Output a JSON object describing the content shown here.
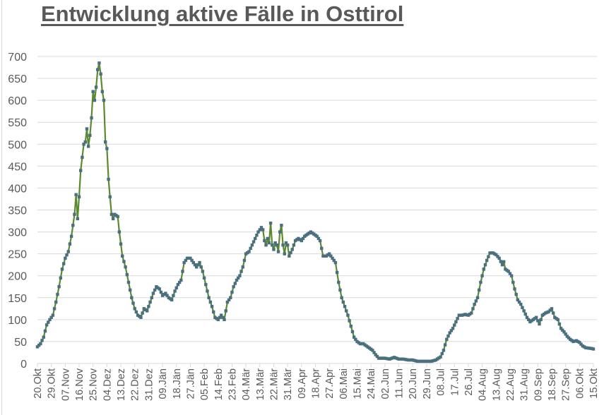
{
  "chart": {
    "title": "Entwicklung aktive Fälle in Osttirol",
    "colors": {
      "line": "#5b8a2e",
      "marker": "#4a6f7e",
      "grid": "#d9d9d9",
      "axis_text": "#595959",
      "title": "#595959"
    }
  },
  "chart_data": {
    "type": "line",
    "title": "Entwicklung aktive Fälle in Osttirol",
    "xlabel": "",
    "ylabel": "",
    "ylim": [
      0,
      700
    ],
    "yticks": [
      0,
      50,
      100,
      150,
      200,
      250,
      300,
      350,
      400,
      450,
      500,
      550,
      600,
      650,
      700
    ],
    "grid": true,
    "legend": "none",
    "x_tick_interval_days": 9,
    "categories": [
      "20.Okt",
      "29.Okt",
      "07.Nov",
      "16.Nov",
      "25.Nov",
      "04.Dez",
      "13.Dez",
      "22.Dez",
      "31.Dez",
      "09.Jän",
      "18.Jän",
      "27.Jän",
      "05.Feb",
      "14.Feb",
      "23.Feb",
      "04.Mär",
      "13.Mär",
      "22.Mär",
      "31.Mär",
      "09.Apr",
      "18.Apr",
      "27.Apr",
      "06.Mai",
      "15.Mai",
      "24.Mai",
      "02.Jun",
      "11.Jun",
      "20.Jun",
      "29.Jun",
      "08.Jul",
      "17.Jul",
      "26.Jul",
      "04.Aug",
      "13.Aug",
      "22.Aug",
      "31.Aug",
      "09.Sep",
      "18.Sep",
      "27.Sep",
      "06.Okt",
      "15.Okt"
    ],
    "series": [
      {
        "name": "aktive Fälle",
        "x_day_offset": [
          0,
          2,
          4,
          6,
          8,
          10,
          12,
          14,
          16,
          18,
          20,
          22,
          24,
          25,
          26,
          27,
          28,
          30,
          31,
          32,
          33,
          34,
          35,
          36,
          37,
          38,
          39,
          40,
          41,
          42,
          43,
          44,
          45,
          46,
          47,
          48,
          49,
          50,
          52,
          53,
          55,
          57,
          59,
          61,
          63,
          65,
          67,
          69,
          71,
          73,
          75,
          77,
          79,
          81,
          83,
          85,
          87,
          89,
          91,
          93,
          95,
          97,
          99,
          101,
          103,
          105,
          107,
          109,
          111,
          113,
          115,
          117,
          119,
          121,
          123,
          125,
          127,
          129,
          131,
          133,
          135,
          137,
          139,
          141,
          143,
          145,
          146,
          147,
          148,
          149,
          150,
          151,
          152,
          153,
          154,
          155,
          156,
          157,
          158,
          159,
          160,
          161,
          162,
          163,
          165,
          167,
          169,
          171,
          173,
          175,
          177,
          179,
          181,
          183,
          185,
          187,
          189,
          191,
          193,
          195,
          197,
          199,
          201,
          203,
          205,
          207,
          209,
          211,
          213,
          215,
          217,
          219,
          221,
          223,
          225,
          228,
          231,
          234,
          237,
          240,
          243,
          246,
          249,
          252,
          255,
          258,
          261,
          263,
          265,
          267,
          269,
          271,
          273,
          275,
          277,
          279,
          281,
          283,
          285,
          287,
          289,
          291,
          293,
          295,
          297,
          299,
          301,
          302,
          303,
          305,
          307,
          309,
          311,
          313,
          315,
          317,
          319,
          321,
          323,
          325,
          327,
          329,
          331,
          333,
          335,
          337,
          339,
          341,
          343,
          345,
          347,
          349,
          351,
          353,
          355,
          357,
          359,
          360
        ],
        "values": [
          38,
          45,
          60,
          88,
          100,
          110,
          140,
          175,
          215,
          240,
          255,
          290,
          340,
          385,
          330,
          380,
          440,
          500,
          505,
          535,
          495,
          520,
          560,
          620,
          600,
          630,
          670,
          685,
          660,
          620,
          600,
          505,
          490,
          420,
          380,
          340,
          330,
          340,
          335,
          300,
          245,
          220,
          185,
          150,
          125,
          110,
          105,
          125,
          120,
          140,
          160,
          175,
          170,
          155,
          160,
          150,
          145,
          165,
          180,
          190,
          230,
          240,
          240,
          230,
          220,
          230,
          210,
          180,
          150,
          130,
          105,
          100,
          110,
          100,
          140,
          150,
          175,
          190,
          200,
          220,
          250,
          255,
          270,
          285,
          300,
          310,
          305,
          280,
          270,
          285,
          275,
          320,
          270,
          260,
          275,
          270,
          255,
          300,
          315,
          270,
          250,
          275,
          270,
          245,
          260,
          280,
          285,
          280,
          290,
          295,
          300,
          295,
          290,
          280,
          245,
          245,
          250,
          240,
          230,
          185,
          150,
          130,
          110,
          85,
          60,
          50,
          45,
          45,
          40,
          35,
          30,
          20,
          12,
          12,
          12,
          10,
          14,
          10,
          10,
          8,
          8,
          5,
          5,
          5,
          5,
          8,
          15,
          30,
          55,
          70,
          80,
          95,
          110,
          110,
          112,
          110,
          115,
          135,
          150,
          185,
          215,
          235,
          252,
          252,
          248,
          240,
          225,
          232,
          215,
          210,
          200,
          170,
          145,
          135,
          120,
          105,
          95,
          100,
          105,
          90,
          110,
          115,
          118,
          125,
          105,
          100,
          80,
          72,
          62,
          55,
          50,
          52,
          48,
          40,
          36,
          35,
          34,
          33,
          36,
          38
        ]
      }
    ]
  }
}
